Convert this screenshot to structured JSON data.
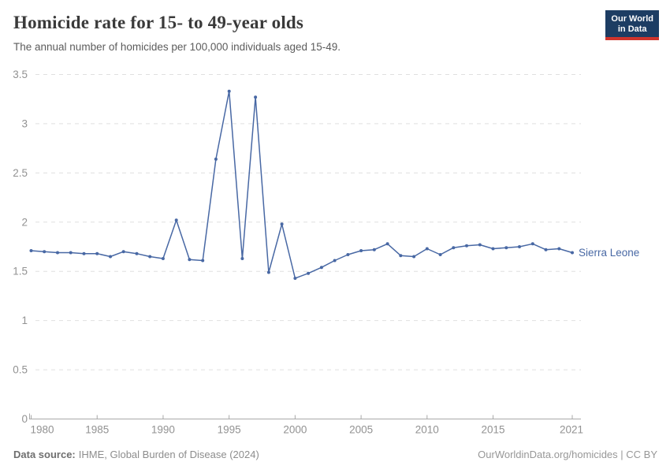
{
  "header": {
    "title": "Homicide rate for 15- to 49-year olds",
    "subtitle": "The annual number of homicides per 100,000 individuals aged 15-49.",
    "logo": {
      "line1": "Our World",
      "line2": "in Data",
      "bg_color": "#1d3d63",
      "accent_color": "#d0342c"
    }
  },
  "footer": {
    "source_label": "Data source:",
    "source_value": "IHME, Global Burden of Disease (2024)",
    "attribution": "OurWorldinData.org/homicides | CC BY"
  },
  "chart_data": {
    "type": "line",
    "title": "Homicide rate for 15- to 49-year olds",
    "xlabel": "",
    "ylabel": "",
    "xlim": [
      1980,
      2021
    ],
    "ylim": [
      0,
      3.5
    ],
    "x_ticks": [
      1980,
      1985,
      1990,
      1995,
      2000,
      2005,
      2010,
      2015,
      2021
    ],
    "y_ticks": [
      0,
      0.5,
      1,
      1.5,
      2,
      2.5,
      3,
      3.5
    ],
    "grid": "horizontal-dashed",
    "legend_position": "end-of-line-label",
    "axis_color": "#a8a8a8",
    "grid_color": "#e0e0e0",
    "tick_label_color": "#929292",
    "series": [
      {
        "name": "Sierra Leone",
        "color": "#4868a4",
        "x": [
          1980,
          1981,
          1982,
          1983,
          1984,
          1985,
          1986,
          1987,
          1988,
          1989,
          1990,
          1991,
          1992,
          1993,
          1994,
          1995,
          1996,
          1997,
          1998,
          1999,
          2000,
          2001,
          2002,
          2003,
          2004,
          2005,
          2006,
          2007,
          2008,
          2009,
          2010,
          2011,
          2012,
          2013,
          2014,
          2015,
          2016,
          2017,
          2018,
          2019,
          2020,
          2021
        ],
        "values": [
          1.71,
          1.7,
          1.69,
          1.69,
          1.68,
          1.68,
          1.65,
          1.7,
          1.68,
          1.65,
          1.63,
          2.02,
          1.62,
          1.61,
          2.64,
          3.33,
          1.63,
          3.27,
          1.49,
          1.98,
          1.43,
          1.48,
          1.54,
          1.61,
          1.67,
          1.71,
          1.72,
          1.78,
          1.66,
          1.65,
          1.73,
          1.67,
          1.74,
          1.76,
          1.77,
          1.73,
          1.74,
          1.75,
          1.78,
          1.72,
          1.73,
          1.69
        ]
      }
    ]
  }
}
